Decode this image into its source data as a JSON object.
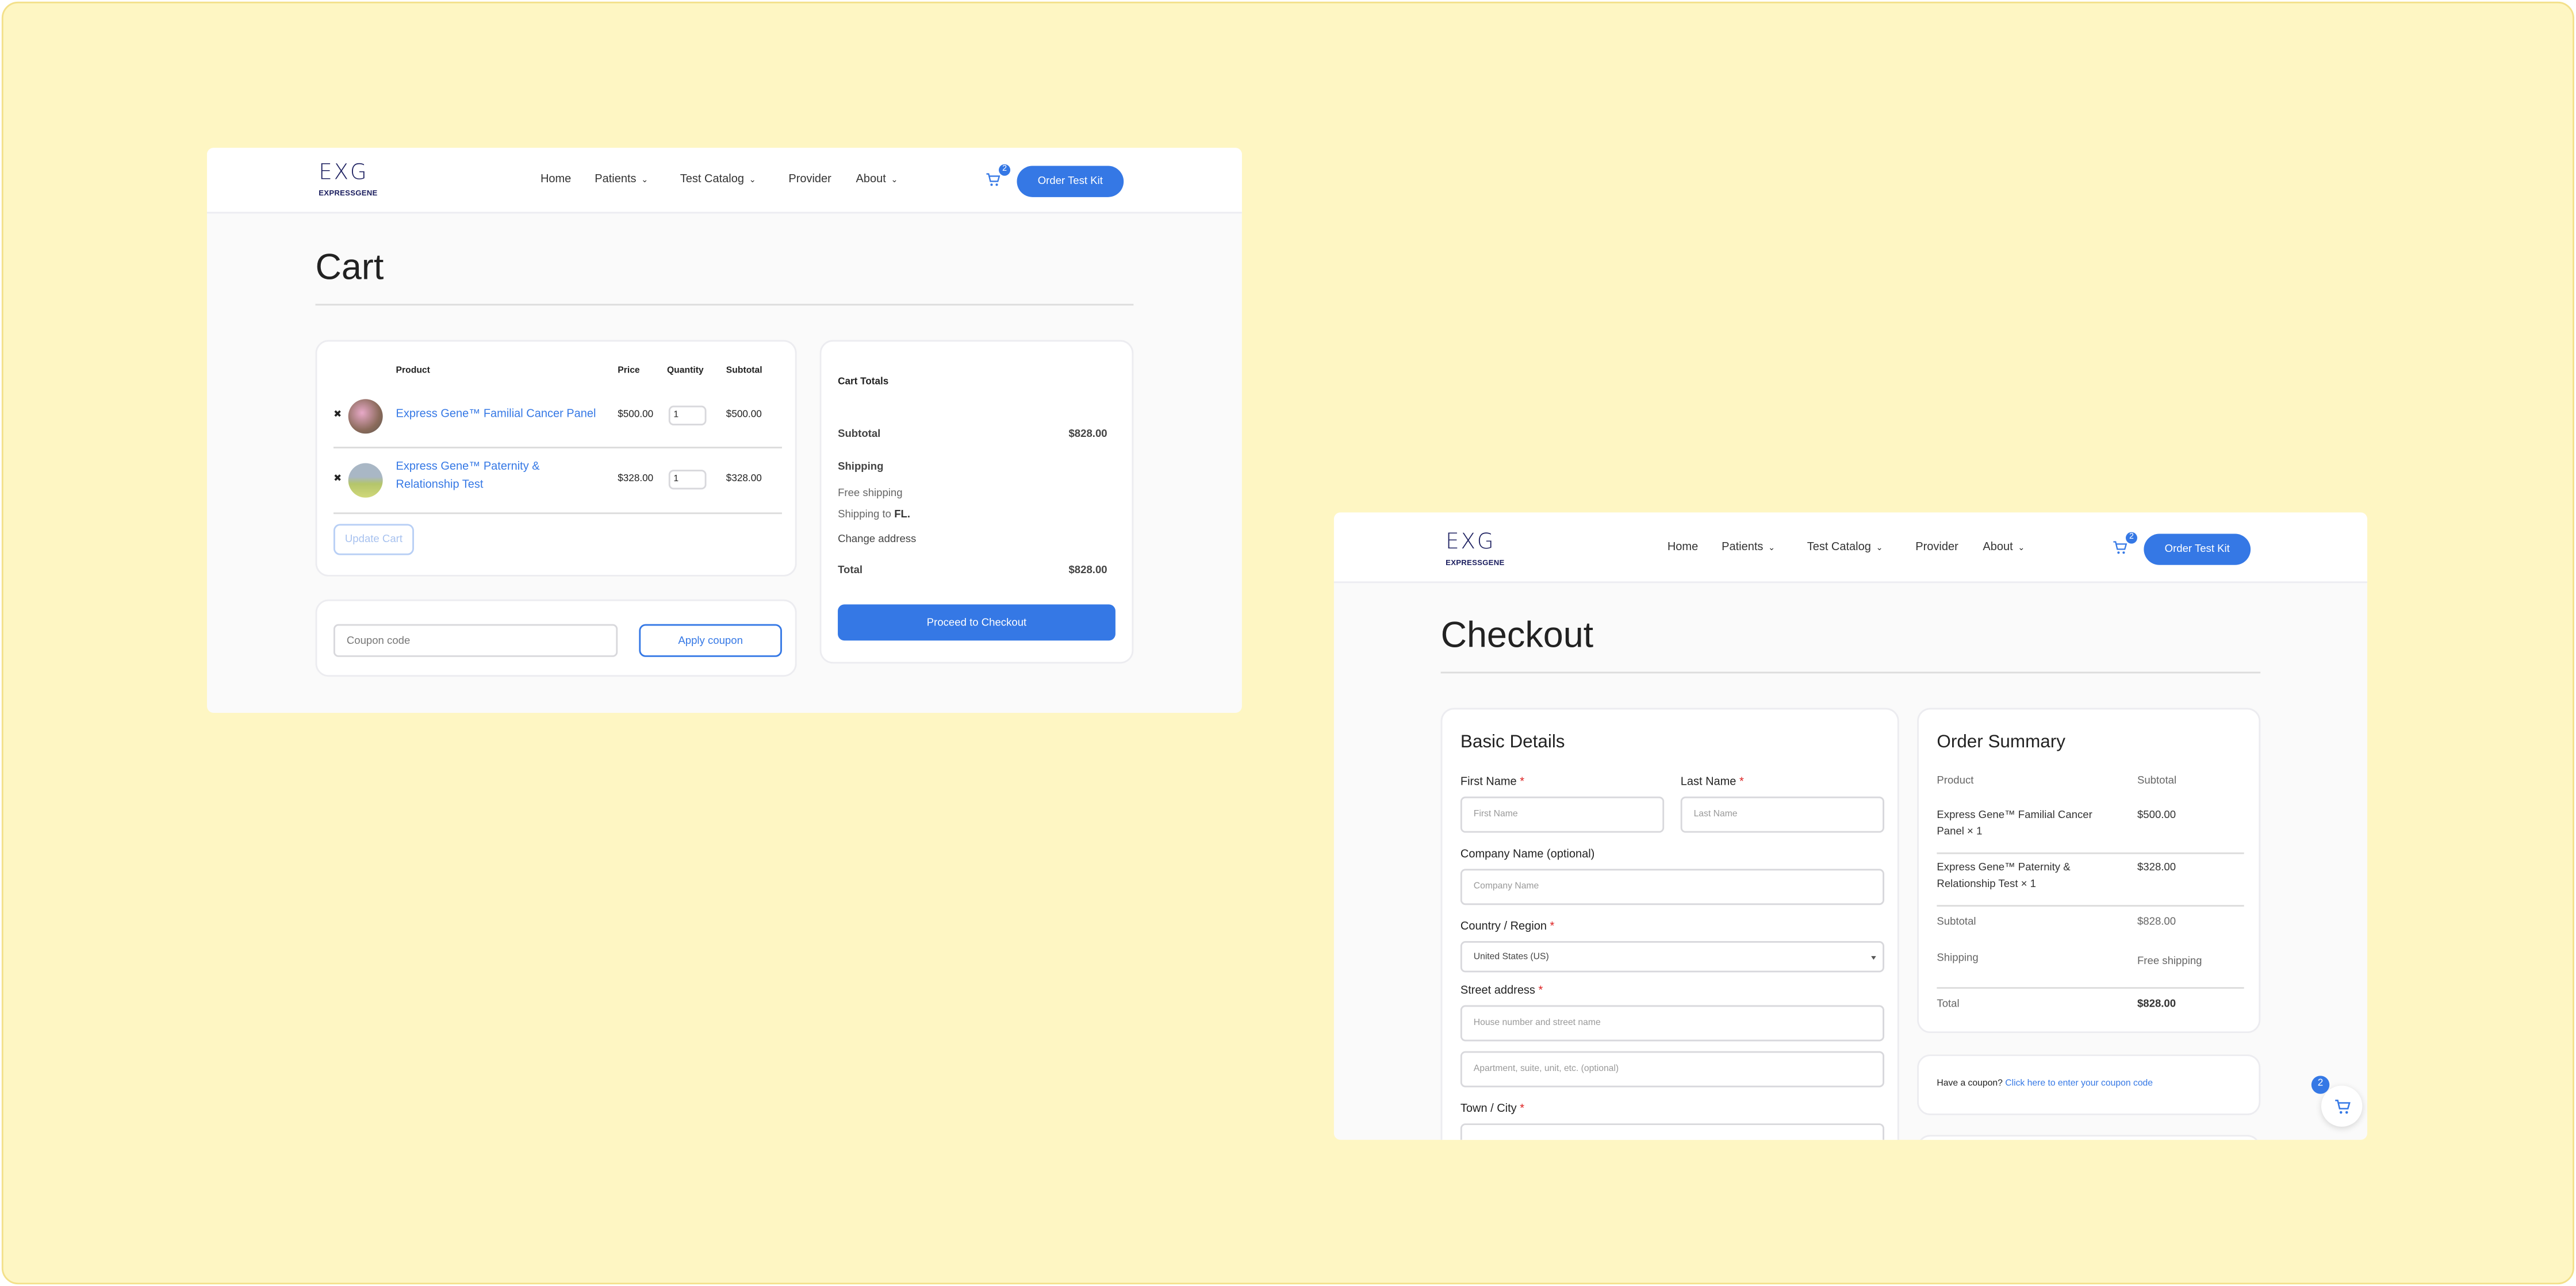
{
  "brand": {
    "logo_mark": "EXG",
    "logo_text": "EXPRESSGENE"
  },
  "nav": {
    "home": "Home",
    "patients": "Patients",
    "test_catalog": "Test Catalog",
    "provider": "Provider",
    "about": "About",
    "cart_count": "2",
    "order_button": "Order Test Kit"
  },
  "colors": {
    "accent": "#3578e5",
    "backdrop": "#fef6c3"
  },
  "cart": {
    "title": "Cart",
    "headers": {
      "product": "Product",
      "price": "Price",
      "quantity": "Quantity",
      "subtotal": "Subtotal"
    },
    "items": [
      {
        "remove": "✖",
        "name": "Express Gene™ Familial Cancer Panel",
        "price": "$500.00",
        "qty": "1",
        "subtotal": "$500.00"
      },
      {
        "remove": "✖",
        "name_line1": "Express Gene™ Paternity &",
        "name_line2": "Relationship Test",
        "price": "$328.00",
        "qty": "1",
        "subtotal": "$328.00"
      }
    ],
    "update_button": "Update Cart",
    "coupon_placeholder": "Coupon code",
    "apply_button": "Apply coupon",
    "totals": {
      "title": "Cart Totals",
      "subtotal_label": "Subtotal",
      "subtotal": "$828.00",
      "shipping_label": "Shipping",
      "free_shipping": "Free shipping",
      "shipping_to": "Shipping to",
      "shipping_state": "FL.",
      "change_address": "Change address",
      "total_label": "Total",
      "total": "$828.00",
      "checkout_button": "Proceed to Checkout"
    }
  },
  "checkout": {
    "title": "Checkout",
    "basic": {
      "title": "Basic Details",
      "first_name": "First Name",
      "first_name_ph": "First Name",
      "last_name": "Last Name",
      "last_name_ph": "Last Name",
      "company": "Company Name (optional)",
      "company_ph": "Company Name",
      "country": "Country / Region",
      "country_value": "United States (US)",
      "street": "Street address",
      "street_ph": "House number and street name",
      "apt_ph": "Apartment, suite, unit, etc. (optional)",
      "town": "Town / City",
      "required_mark": "*"
    },
    "summary": {
      "title": "Order Summary",
      "product_header": "Product",
      "subtotal_header": "Subtotal",
      "items": [
        {
          "line1": "Express Gene™ Familial Cancer",
          "line2": "Panel  × 1",
          "price": "$500.00"
        },
        {
          "line1": "Express Gene™ Paternity &",
          "line2": "Relationship Test  × 1",
          "price": "$328.00"
        }
      ],
      "subtotal_label": "Subtotal",
      "subtotal": "$828.00",
      "shipping_label": "Shipping",
      "shipping": "Free shipping",
      "total_label": "Total",
      "total": "$828.00"
    },
    "coupon": {
      "prompt": "Have a coupon?",
      "link": "Click here to enter your coupon code"
    },
    "floating_cart_count": "2"
  }
}
